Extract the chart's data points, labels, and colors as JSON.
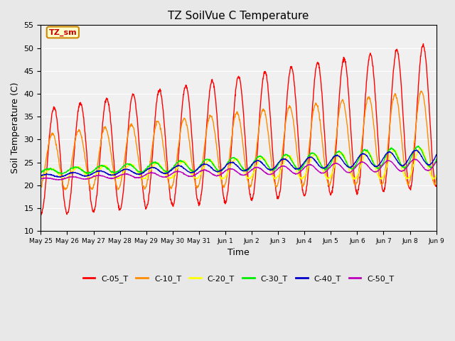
{
  "title": "TZ SoilVue C Temperature",
  "xlabel": "Time",
  "ylabel": "Soil Temperature (C)",
  "ylim": [
    10,
    55
  ],
  "yticks": [
    10,
    15,
    20,
    25,
    30,
    35,
    40,
    45,
    50,
    55
  ],
  "fig_bg_color": "#e8e8e8",
  "plot_bg_color": "#f0f0f0",
  "series": {
    "C-05_T": {
      "color": "#ff0000",
      "linewidth": 1.0
    },
    "C-10_T": {
      "color": "#ff8c00",
      "linewidth": 1.0
    },
    "C-20_T": {
      "color": "#ffff00",
      "linewidth": 1.0
    },
    "C-30_T": {
      "color": "#00ee00",
      "linewidth": 1.0
    },
    "C-40_T": {
      "color": "#0000cc",
      "linewidth": 1.0
    },
    "C-50_T": {
      "color": "#bb00bb",
      "linewidth": 1.0
    }
  },
  "annotation_text": "TZ_sm",
  "annotation_color": "#cc0000",
  "annotation_bg": "#ffffcc",
  "annotation_border": "#cc8800",
  "num_days": 16,
  "x_tick_labels": [
    "May 25",
    "May 26",
    "May 27",
    "May 28",
    "May 29",
    "May 30",
    "May 31",
    "Jun 1",
    "Jun 2",
    "Jun 3",
    "Jun 4",
    "Jun 5",
    "Jun 6",
    "Jun 7",
    "Jun 8",
    "Jun 9"
  ],
  "x_tick_positions": [
    0,
    1,
    2,
    3,
    4,
    5,
    6,
    7,
    8,
    9,
    10,
    11,
    12,
    13,
    14,
    15
  ]
}
